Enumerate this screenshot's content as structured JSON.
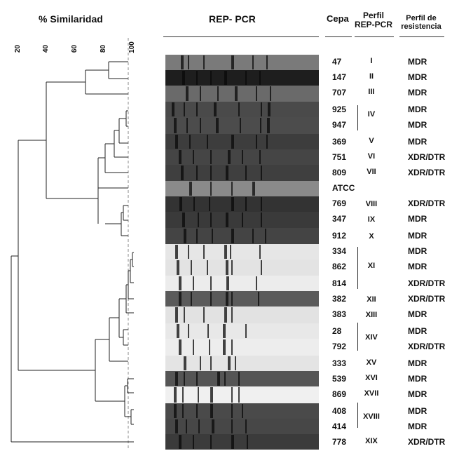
{
  "headers": {
    "similarity": "% Similaridad",
    "rep_pcr": "REP- PCR",
    "cepa": "Cepa",
    "perfil": "Perfil\nREP-PCR",
    "resistencia": "Perfil de\nresistencia"
  },
  "axis_ticks": [
    "20",
    "40",
    "60",
    "80",
    "100"
  ],
  "rows": [
    {
      "cepa": "47",
      "perfil": "I",
      "res": "MDR"
    },
    {
      "cepa": "147",
      "perfil": "II",
      "res": "MDR"
    },
    {
      "cepa": "707",
      "perfil": "III",
      "res": "MDR"
    },
    {
      "cepa": "925",
      "perfil": "IV",
      "res": "MDR"
    },
    {
      "cepa": "947",
      "perfil": "",
      "res": "MDR"
    },
    {
      "cepa": "369",
      "perfil": "V",
      "res": "MDR"
    },
    {
      "cepa": "751",
      "perfil": "VI",
      "res": "XDR/DTR"
    },
    {
      "cepa": "809",
      "perfil": "VII",
      "res": "XDR/DTR"
    },
    {
      "cepa": "ATCC",
      "perfil": "",
      "res": ""
    },
    {
      "cepa": "769",
      "perfil": "VIII",
      "res": "XDR/DTR"
    },
    {
      "cepa": "347",
      "perfil": "IX",
      "res": "MDR"
    },
    {
      "cepa": "912",
      "perfil": "X",
      "res": "MDR"
    },
    {
      "cepa": "334",
      "perfil": "",
      "res": "MDR"
    },
    {
      "cepa": "862",
      "perfil": "XI",
      "res": "MDR"
    },
    {
      "cepa": "814",
      "perfil": "",
      "res": "XDR/DTR"
    },
    {
      "cepa": "382",
      "perfil": "XII",
      "res": "XDR/DTR"
    },
    {
      "cepa": "383",
      "perfil": "XIII",
      "res": "MDR"
    },
    {
      "cepa": "28",
      "perfil": "XIV",
      "res": "MDR"
    },
    {
      "cepa": "792",
      "perfil": "",
      "res": "XDR/DTR"
    },
    {
      "cepa": "333",
      "perfil": "XV",
      "res": "MDR"
    },
    {
      "cepa": "539",
      "perfil": "XVI",
      "res": "MDR"
    },
    {
      "cepa": "869",
      "perfil": "XVII",
      "res": "MDR"
    },
    {
      "cepa": "408",
      "perfil": "XVIII",
      "res": "MDR"
    },
    {
      "cepa": "414",
      "perfil": "",
      "res": "MDR"
    },
    {
      "cepa": "778",
      "perfil": "XIX",
      "res": "XDR/DTR"
    }
  ],
  "colors": {
    "dendrogram_line": "#222222",
    "cutoff_line": "#888888",
    "gel_dark": "#3a3a3a",
    "gel_light": "#e6e6e6"
  }
}
